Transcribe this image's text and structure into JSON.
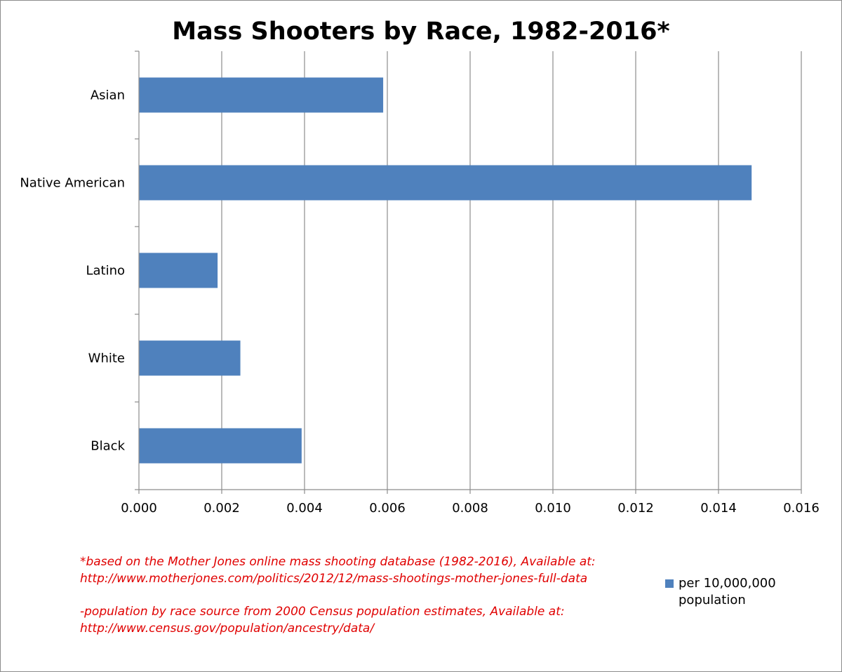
{
  "chart_data": {
    "type": "bar",
    "orientation": "horizontal",
    "title": "Mass Shooters by Race, 1982-2016*",
    "categories": [
      "Asian",
      "Native American",
      "Latino",
      "White",
      "Black"
    ],
    "series": [
      {
        "name": "per 10,000,000 population",
        "color": "#4f81bd",
        "values": [
          0.0059,
          0.0148,
          0.0019,
          0.00245,
          0.00393
        ]
      }
    ],
    "xlim": [
      0,
      0.016
    ],
    "x_ticks": [
      0,
      0.002,
      0.004,
      0.006,
      0.008,
      0.01,
      0.012,
      0.014,
      0.016
    ],
    "x_tick_labels": [
      "0.000",
      "0.002",
      "0.004",
      "0.006",
      "0.008",
      "0.010",
      "0.012",
      "0.014",
      "0.016"
    ],
    "xlabel": "",
    "ylabel": "",
    "grid": true,
    "legend_position": "bottom-right"
  },
  "notes": {
    "line1": "*based on the Mother Jones online mass shooting database (1982-2016), Available at:",
    "line2": "http://www.motherjones.com/politics/2012/12/mass-shootings-mother-jones-full-data",
    "line3": "-population by race source from 2000 Census population estimates, Available at:",
    "line4": "http://www.census.gov/population/ancestry/data/"
  },
  "legend": {
    "label": "per 10,000,000 population"
  },
  "colors": {
    "bar": "#4f81bd",
    "note_text": "#e00000",
    "grid": "#8c8c8c"
  }
}
